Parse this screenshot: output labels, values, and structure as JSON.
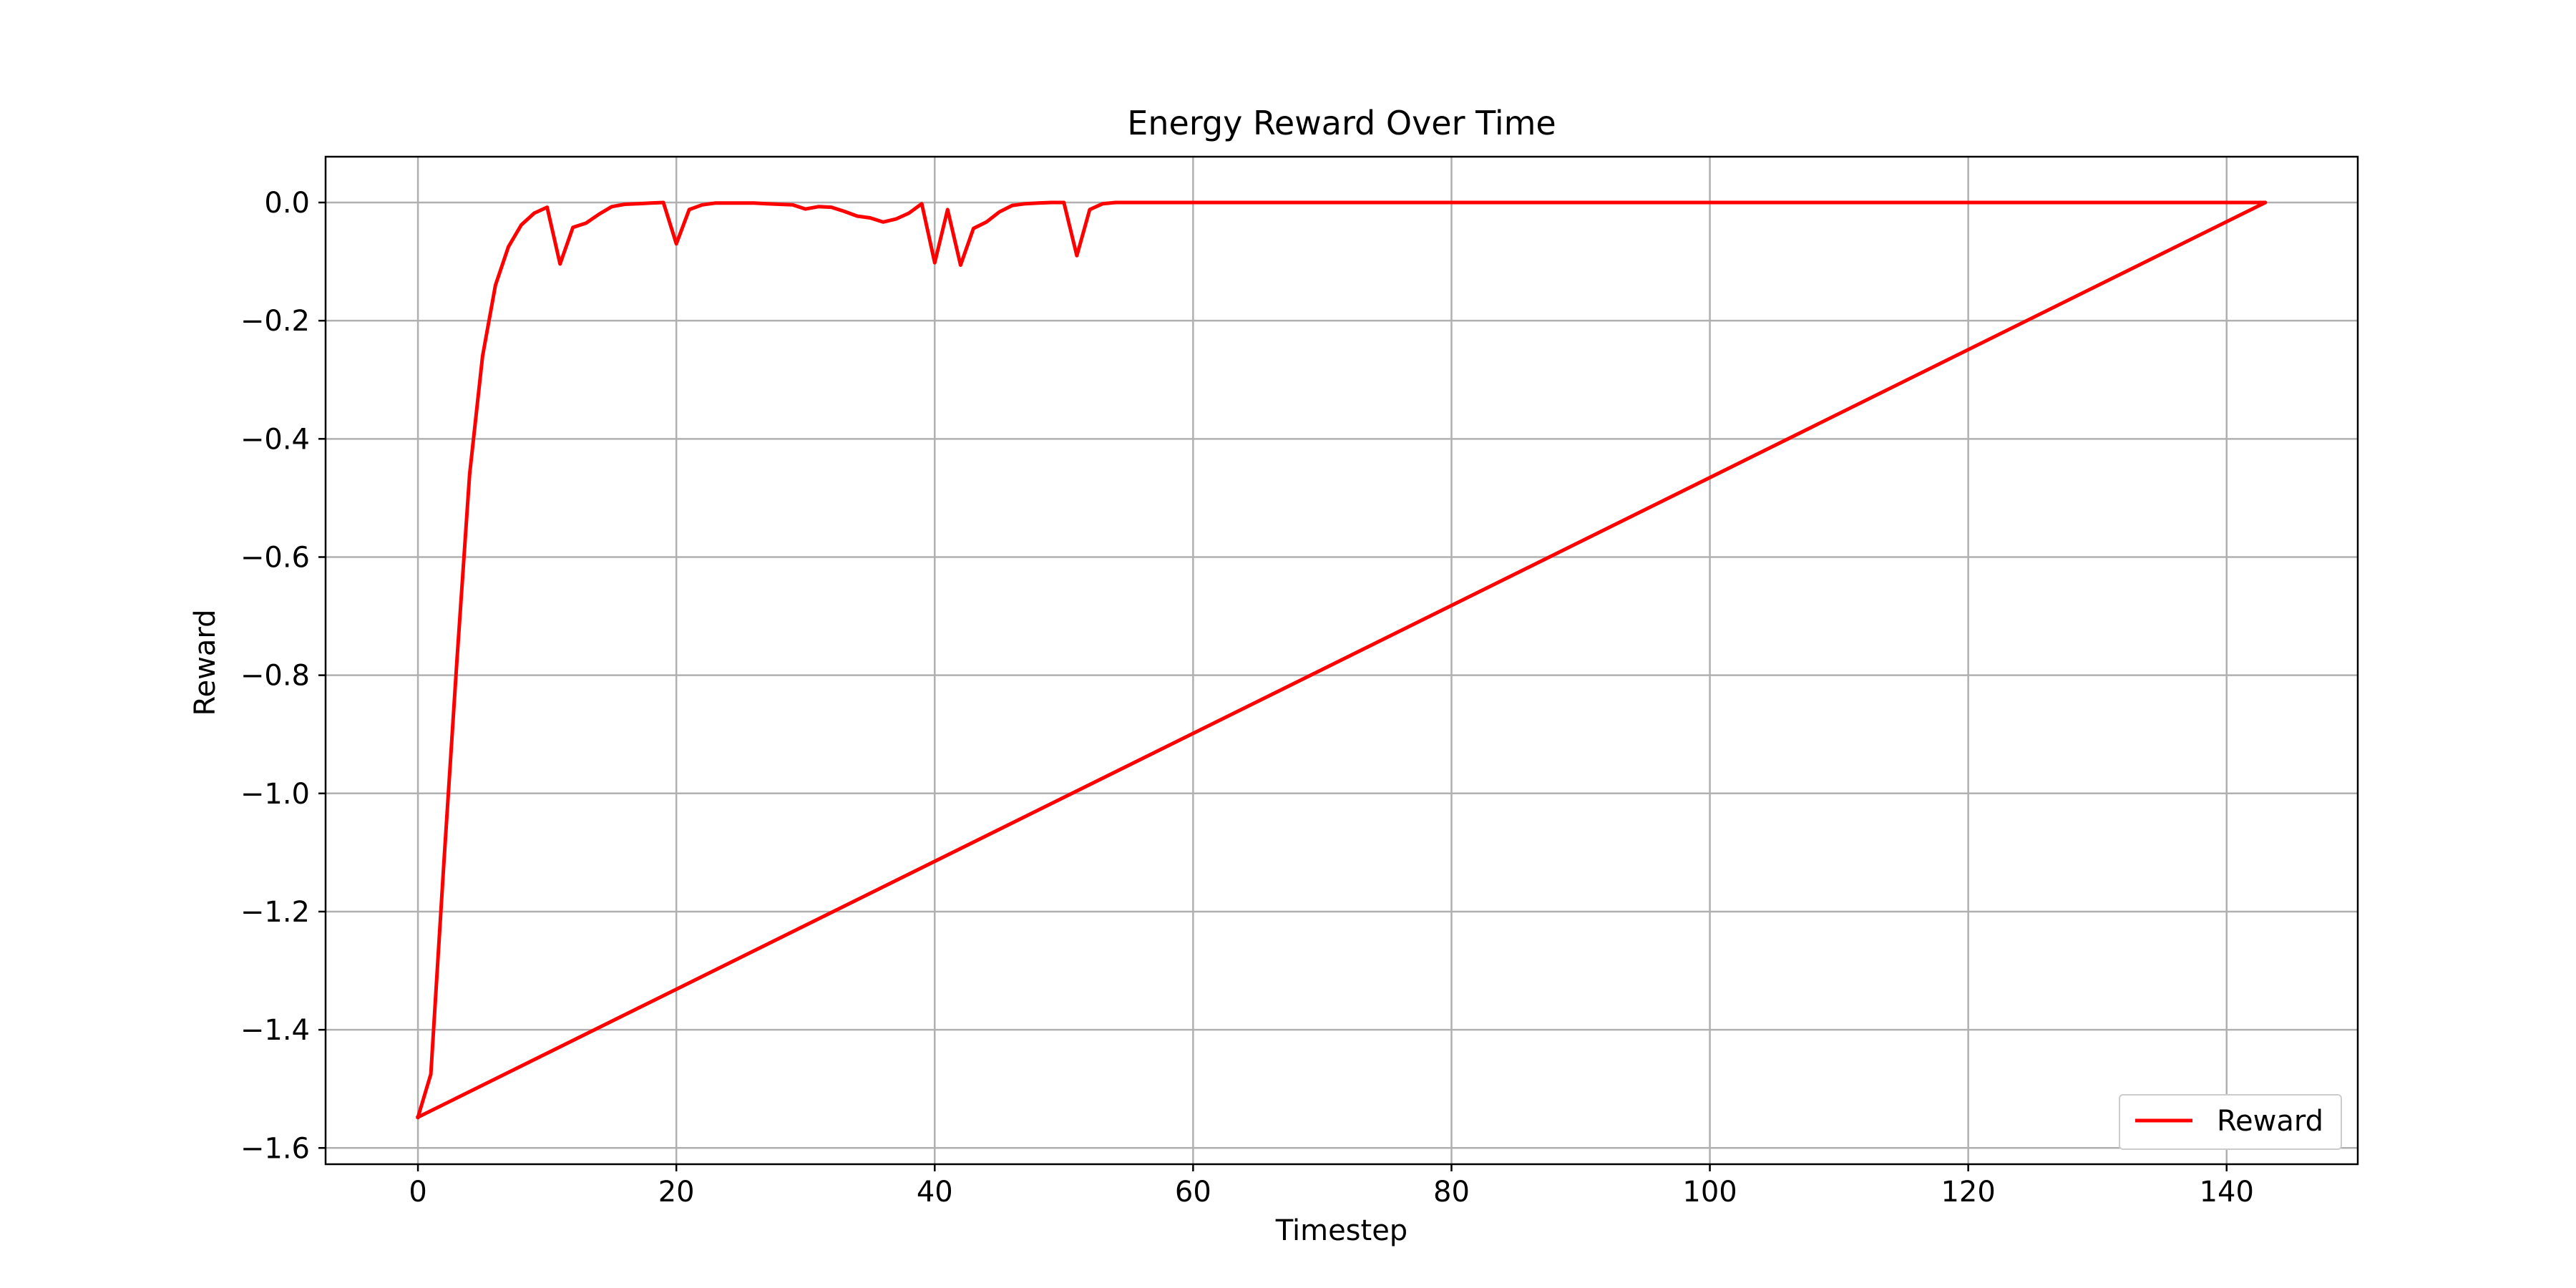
{
  "chart_data": {
    "type": "line",
    "title": "Energy Reward Over Time",
    "xlabel": "Timestep",
    "ylabel": "Reward",
    "xlim": [
      -7.15,
      150.15
    ],
    "ylim": [
      -1.6275,
      0.0775
    ],
    "xticks": [
      0,
      20,
      40,
      60,
      80,
      100,
      120,
      140
    ],
    "yticks": [
      0.0,
      -0.2,
      -0.4,
      -0.6,
      -0.8,
      -1.0,
      -1.2,
      -1.4,
      -1.6
    ],
    "xtick_labels": [
      "0",
      "20",
      "40",
      "60",
      "80",
      "100",
      "120",
      "140"
    ],
    "ytick_labels": [
      "0.0",
      "−0.2",
      "−0.4",
      "−0.6",
      "−0.8",
      "−1.0",
      "−1.2",
      "−1.4",
      "−1.6"
    ],
    "grid": true,
    "legend_position": "lower right",
    "series": [
      {
        "name": "Reward",
        "color": "#ff0000",
        "x": [
          0,
          1,
          2,
          3,
          4,
          5,
          6,
          7,
          8,
          9,
          10,
          11,
          12,
          13,
          14,
          15,
          16,
          17,
          18,
          19,
          20,
          21,
          22,
          23,
          24,
          25,
          26,
          27,
          28,
          29,
          30,
          31,
          32,
          33,
          34,
          35,
          36,
          37,
          38,
          39,
          40,
          41,
          42,
          43,
          44,
          45,
          46,
          47,
          48,
          49,
          50,
          51,
          52,
          53,
          54,
          55,
          60,
          70,
          80,
          90,
          100,
          110,
          120,
          130,
          140,
          143,
          0
        ],
        "y": [
          -1.548,
          -1.475,
          -1.12,
          -0.78,
          -0.46,
          -0.26,
          -0.14,
          -0.075,
          -0.038,
          -0.018,
          -0.008,
          -0.104,
          -0.042,
          -0.035,
          -0.02,
          -0.007,
          -0.003,
          -0.002,
          -0.001,
          0.0,
          -0.07,
          -0.012,
          -0.004,
          -0.001,
          -0.001,
          -0.001,
          -0.001,
          -0.002,
          -0.003,
          -0.004,
          -0.011,
          -0.007,
          -0.008,
          -0.015,
          -0.023,
          -0.026,
          -0.033,
          -0.028,
          -0.018,
          -0.002,
          -0.102,
          -0.012,
          -0.106,
          -0.044,
          -0.033,
          -0.016,
          -0.005,
          -0.002,
          -0.001,
          0.0,
          0.0,
          -0.09,
          -0.012,
          -0.002,
          0.0,
          0.0,
          0.0,
          0.0,
          0.0,
          0.0,
          0.0,
          0.0,
          0.0,
          0.0,
          0.0,
          0.0,
          -1.548
        ]
      }
    ]
  }
}
